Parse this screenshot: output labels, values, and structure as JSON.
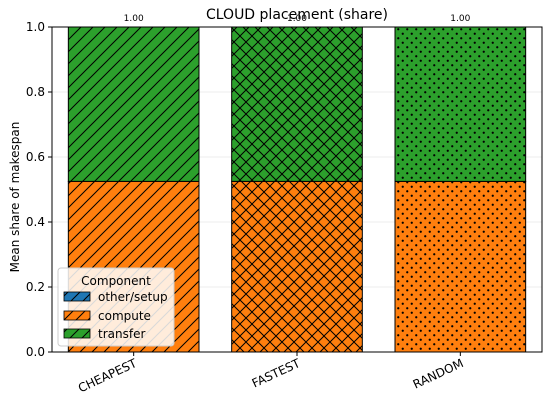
{
  "chart_data": {
    "type": "bar",
    "stacked": true,
    "title": "CLOUD placement (share)",
    "xlabel": "",
    "ylabel": "Mean share of makespan",
    "ylim": [
      0,
      1.0
    ],
    "yticks": [
      "0.0",
      "0.2",
      "0.4",
      "0.6",
      "0.8",
      "1.0"
    ],
    "categories": [
      "CHEAPEST",
      "FASTEST",
      "RANDOM"
    ],
    "hatches": [
      "diagonal",
      "crosshatch",
      "dots"
    ],
    "series": [
      {
        "name": "other/setup",
        "color": "#1f77b4",
        "values": [
          0.0,
          0.0,
          0.0
        ]
      },
      {
        "name": "compute",
        "color": "#ff7f0e",
        "values": [
          0.525,
          0.525,
          0.525
        ]
      },
      {
        "name": "transfer",
        "color": "#2ca02c",
        "values": [
          0.475,
          0.475,
          0.475
        ]
      }
    ],
    "totals": [
      "1.00",
      "1.00",
      "1.00"
    ],
    "grid": "y",
    "legend": {
      "title": "Component",
      "placement": "lower-left"
    }
  }
}
